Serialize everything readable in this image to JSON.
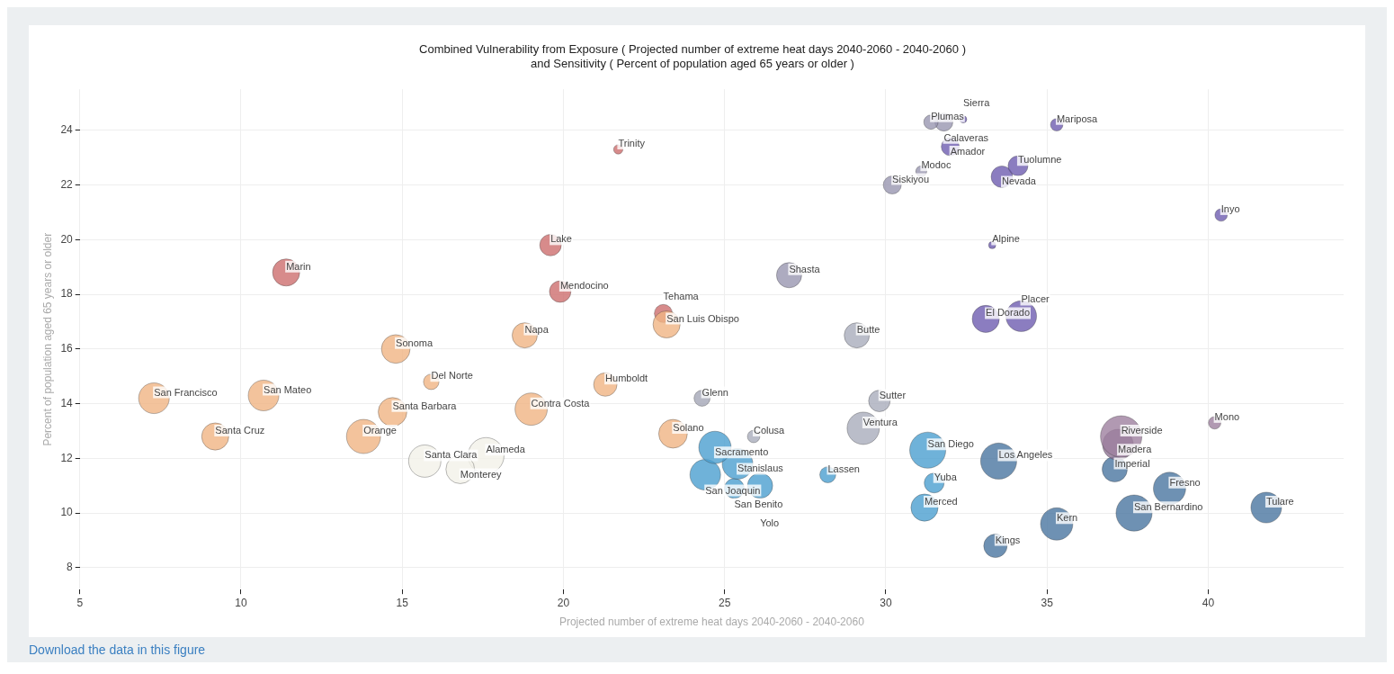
{
  "chart_data": {
    "type": "bubble",
    "title": [
      "Combined Vulnerability from Exposure ( Projected number of extreme heat days 2040-2060 - 2040-2060 )",
      "and Sensitivity ( Percent of population aged 65 years or older )"
    ],
    "xlabel": "Projected number of extreme heat days 2040-2060 - 2040-2060",
    "ylabel": "Percent of population aged 65 years or older",
    "annotations": [
      "Download the data in this figure"
    ],
    "xlim": [
      5,
      44.2
    ],
    "ylim": [
      7.2,
      25.5
    ],
    "xticks": [
      5,
      10,
      15,
      20,
      25,
      30,
      35,
      40
    ],
    "yticks": [
      8,
      10,
      12,
      14,
      16,
      18,
      20,
      22,
      24
    ],
    "grid": true,
    "legend": false,
    "series": [
      {
        "name": "San Francisco",
        "color": "#f0b483",
        "x": [
          7.3
        ],
        "values": [
          14.2
        ],
        "sizes": [
          0.55
        ]
      },
      {
        "name": "San Mateo",
        "color": "#f0b483",
        "x": [
          10.7
        ],
        "values": [
          14.3
        ],
        "sizes": [
          0.55
        ]
      },
      {
        "name": "Santa Cruz",
        "color": "#f0b483",
        "x": [
          9.2
        ],
        "values": [
          12.8
        ],
        "sizes": [
          0.43
        ]
      },
      {
        "name": "Marin",
        "color": "#cd6e6e",
        "x": [
          11.4
        ],
        "values": [
          18.8
        ],
        "sizes": [
          0.43
        ]
      },
      {
        "name": "Sonoma",
        "color": "#f0b483",
        "x": [
          14.8
        ],
        "values": [
          16.0
        ],
        "sizes": [
          0.48
        ]
      },
      {
        "name": "Del Norte",
        "color": "#f0b483",
        "x": [
          15.9
        ],
        "values": [
          14.8
        ],
        "sizes": [
          0.14
        ]
      },
      {
        "name": "Santa Barbara",
        "color": "#f0b483",
        "x": [
          14.7
        ],
        "values": [
          13.7
        ],
        "sizes": [
          0.48
        ]
      },
      {
        "name": "Orange",
        "color": "#f0b483",
        "x": [
          13.8
        ],
        "values": [
          12.8
        ],
        "sizes": [
          0.68
        ]
      },
      {
        "name": "Santa Clara",
        "color": "#f2f1e8",
        "x": [
          15.7
        ],
        "values": [
          11.9
        ],
        "sizes": [
          0.61
        ]
      },
      {
        "name": "Monterey",
        "color": "#f2f1e8",
        "x": [
          16.8
        ],
        "values": [
          11.6
        ],
        "sizes": [
          0.48
        ]
      },
      {
        "name": "Alameda",
        "color": "#f2f1e8",
        "x": [
          17.6
        ],
        "values": [
          12.1
        ],
        "sizes": [
          0.76
        ]
      },
      {
        "name": "Napa",
        "color": "#f0b483",
        "x": [
          18.8
        ],
        "values": [
          16.5
        ],
        "sizes": [
          0.37
        ]
      },
      {
        "name": "Contra Costa",
        "color": "#f0b483",
        "x": [
          19.0
        ],
        "values": [
          13.8
        ],
        "sizes": [
          0.61
        ]
      },
      {
        "name": "Lake",
        "color": "#cd6e6e",
        "x": [
          19.6
        ],
        "values": [
          19.8
        ],
        "sizes": [
          0.27
        ]
      },
      {
        "name": "Mendocino",
        "color": "#cd6e6e",
        "x": [
          19.9
        ],
        "values": [
          18.1
        ],
        "sizes": [
          0.27
        ]
      },
      {
        "name": "Trinity",
        "color": "#cd6e6e",
        "x": [
          21.7
        ],
        "values": [
          23.3
        ],
        "sizes": [
          0.05
        ]
      },
      {
        "name": "Humboldt",
        "color": "#f0b483",
        "x": [
          21.3
        ],
        "values": [
          14.7
        ],
        "sizes": [
          0.32
        ]
      },
      {
        "name": "San Luis Obispo",
        "color": "#f0b483",
        "x": [
          23.2
        ],
        "values": [
          16.9
        ],
        "sizes": [
          0.43
        ]
      },
      {
        "name": "Tehama",
        "color": "#cd6e6e",
        "x": [
          23.1
        ],
        "values": [
          17.3
        ],
        "sizes": [
          0.19
        ]
      },
      {
        "name": "Solano",
        "color": "#f0b483",
        "x": [
          23.4
        ],
        "values": [
          12.9
        ],
        "sizes": [
          0.48
        ]
      },
      {
        "name": "Glenn",
        "color": "#a4a6b6",
        "x": [
          24.3
        ],
        "values": [
          14.2
        ],
        "sizes": [
          0.15
        ]
      },
      {
        "name": "Shasta",
        "color": "#9896b0",
        "x": [
          27.0
        ],
        "values": [
          18.7
        ],
        "sizes": [
          0.37
        ]
      },
      {
        "name": "Butte",
        "color": "#a9acbc",
        "x": [
          29.1
        ],
        "values": [
          16.5
        ],
        "sizes": [
          0.37
        ]
      },
      {
        "name": "Sutter",
        "color": "#a9acbc",
        "x": [
          29.8
        ],
        "values": [
          14.1
        ],
        "sizes": [
          0.27
        ]
      },
      {
        "name": "Ventura",
        "color": "#a9acbc",
        "x": [
          29.3
        ],
        "values": [
          13.1
        ],
        "sizes": [
          0.61
        ]
      },
      {
        "name": "Colusa",
        "color": "#a9acbc",
        "x": [
          25.9
        ],
        "values": [
          12.8
        ],
        "sizes": [
          0.09
        ]
      },
      {
        "name": "Sacramento",
        "color": "#4b9fcf",
        "x": [
          24.7
        ],
        "values": [
          12.4
        ],
        "sizes": [
          0.61
        ]
      },
      {
        "name": "Stanislaus",
        "color": "#4b9fcf",
        "x": [
          25.4
        ],
        "values": [
          11.8
        ],
        "sizes": [
          0.55
        ]
      },
      {
        "name": "San Joaquin",
        "color": "#4b9fcf",
        "x": [
          24.4
        ],
        "values": [
          11.4
        ],
        "sizes": [
          0.55
        ]
      },
      {
        "name": "San Benito",
        "color": "#4b9fcf",
        "x": [
          25.3
        ],
        "values": [
          10.9
        ],
        "sizes": [
          0.23
        ]
      },
      {
        "name": "Yolo",
        "color": "#4b9fcf",
        "x": [
          26.1
        ],
        "values": [
          11.0
        ],
        "sizes": [
          0.37
        ]
      },
      {
        "name": "Lassen",
        "color": "#4b9fcf",
        "x": [
          28.2
        ],
        "values": [
          11.4
        ],
        "sizes": [
          0.15
        ]
      },
      {
        "name": "San Diego",
        "color": "#4b9fcf",
        "x": [
          31.3
        ],
        "values": [
          12.3
        ],
        "sizes": [
          0.76
        ]
      },
      {
        "name": "Yuba",
        "color": "#4b9fcf",
        "x": [
          31.5
        ],
        "values": [
          11.1
        ],
        "sizes": [
          0.23
        ]
      },
      {
        "name": "Merced",
        "color": "#4b9fcf",
        "x": [
          31.2
        ],
        "values": [
          10.2
        ],
        "sizes": [
          0.43
        ]
      },
      {
        "name": "Los Angeles",
        "color": "#4a75a0",
        "x": [
          33.5
        ],
        "values": [
          11.9
        ],
        "sizes": [
          0.76
        ]
      },
      {
        "name": "Kings",
        "color": "#4a75a0",
        "x": [
          33.4
        ],
        "values": [
          8.8
        ],
        "sizes": [
          0.32
        ]
      },
      {
        "name": "Kern",
        "color": "#4a75a0",
        "x": [
          35.3
        ],
        "values": [
          9.6
        ],
        "sizes": [
          0.61
        ]
      },
      {
        "name": "Riverside",
        "color": "#9d7f9f",
        "x": [
          37.3
        ],
        "values": [
          12.8
        ],
        "sizes": [
          1
        ]
      },
      {
        "name": "Madera",
        "color": "#8f7393",
        "x": [
          37.2
        ],
        "values": [
          12.5
        ],
        "sizes": [
          0.55
        ]
      },
      {
        "name": "Imperial",
        "color": "#4a75a0",
        "x": [
          37.1
        ],
        "values": [
          11.6
        ],
        "sizes": [
          0.37
        ]
      },
      {
        "name": "Fresno",
        "color": "#4a75a0",
        "x": [
          38.8
        ],
        "values": [
          10.9
        ],
        "sizes": [
          0.61
        ]
      },
      {
        "name": "San Bernardino",
        "color": "#4a75a0",
        "x": [
          37.7
        ],
        "values": [
          10.0
        ],
        "sizes": [
          0.76
        ]
      },
      {
        "name": "Tulare",
        "color": "#4a75a0",
        "x": [
          41.8
        ],
        "values": [
          10.2
        ],
        "sizes": [
          0.55
        ]
      },
      {
        "name": "Mono",
        "color": "#9d7f9f",
        "x": [
          40.2
        ],
        "values": [
          13.3
        ],
        "sizes": [
          0.09
        ]
      },
      {
        "name": "Siskiyou",
        "color": "#9896b0",
        "x": [
          30.2
        ],
        "values": [
          22.0
        ],
        "sizes": [
          0.19
        ]
      },
      {
        "name": "Modoc",
        "color": "#9896b0",
        "x": [
          31.1
        ],
        "values": [
          22.5
        ],
        "sizes": [
          0.07
        ]
      },
      {
        "name": "Plumas",
        "color": "#9896b0",
        "x": [
          31.4
        ],
        "values": [
          24.3
        ],
        "sizes": [
          0.12
        ]
      },
      {
        "name": "Calaveras",
        "color": "#9896b0",
        "x": [
          31.8
        ],
        "values": [
          24.3
        ],
        "sizes": [
          0.19
        ]
      },
      {
        "name": "Sierra",
        "color": "#6e5cb0",
        "x": [
          32.4
        ],
        "values": [
          24.4
        ],
        "sizes": [
          0.03
        ]
      },
      {
        "name": "Amador",
        "color": "#6e5cb0",
        "x": [
          32.0
        ],
        "values": [
          23.4
        ],
        "sizes": [
          0.19
        ]
      },
      {
        "name": "Mariposa",
        "color": "#6e5cb0",
        "x": [
          35.3
        ],
        "values": [
          24.2
        ],
        "sizes": [
          0.09
        ]
      },
      {
        "name": "Tuolumne",
        "color": "#6e5cb0",
        "x": [
          34.1
        ],
        "values": [
          22.7
        ],
        "sizes": [
          0.23
        ]
      },
      {
        "name": "Nevada",
        "color": "#6e5cb0",
        "x": [
          33.6
        ],
        "values": [
          22.3
        ],
        "sizes": [
          0.27
        ]
      },
      {
        "name": "Alpine",
        "color": "#6e5cb0",
        "x": [
          33.3
        ],
        "values": [
          19.8
        ],
        "sizes": [
          0.03
        ]
      },
      {
        "name": "Inyo",
        "color": "#6e5cb0",
        "x": [
          40.4
        ],
        "values": [
          20.9
        ],
        "sizes": [
          0.09
        ]
      },
      {
        "name": "El Dorado",
        "color": "#6e5cb0",
        "x": [
          33.1
        ],
        "values": [
          17.1
        ],
        "sizes": [
          0.43
        ]
      },
      {
        "name": "Placer",
        "color": "#6e5cb0",
        "x": [
          34.2
        ],
        "values": [
          17.2
        ],
        "sizes": [
          0.55
        ]
      }
    ]
  }
}
